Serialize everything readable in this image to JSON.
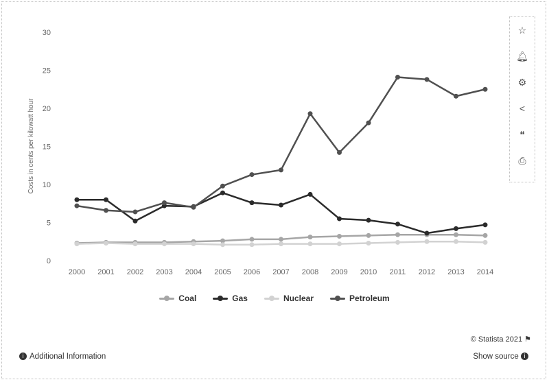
{
  "chart_data": {
    "type": "line",
    "ylabel": "Costs in cents per kilowatt hour",
    "xlabel": "",
    "ylim": [
      0,
      30
    ],
    "yticks": [
      0,
      5,
      10,
      15,
      20,
      25,
      30
    ],
    "grid": false,
    "legend_position": "bottom",
    "categories": [
      "2000",
      "2001",
      "2002",
      "2003",
      "2004",
      "2005",
      "2006",
      "2007",
      "2008",
      "2009",
      "2010",
      "2011",
      "2012",
      "2013",
      "2014"
    ],
    "series": [
      {
        "name": "Coal",
        "color": "#a6a6a6",
        "values": [
          2.3,
          2.4,
          2.4,
          2.4,
          2.5,
          2.6,
          2.8,
          2.8,
          3.1,
          3.2,
          3.3,
          3.4,
          3.4,
          3.4,
          3.3
        ]
      },
      {
        "name": "Gas",
        "color": "#2b2b2b",
        "values": [
          8.0,
          8.0,
          5.2,
          7.2,
          7.1,
          8.9,
          7.6,
          7.3,
          8.7,
          5.5,
          5.3,
          4.8,
          3.6,
          4.2,
          4.7
        ]
      },
      {
        "name": "Nuclear",
        "color": "#d2d2d2",
        "values": [
          2.2,
          2.3,
          2.2,
          2.2,
          2.2,
          2.1,
          2.1,
          2.2,
          2.2,
          2.2,
          2.3,
          2.4,
          2.5,
          2.5,
          2.4
        ]
      },
      {
        "name": "Petroleum",
        "color": "#505050",
        "values": [
          7.2,
          6.6,
          6.4,
          7.6,
          7.0,
          9.8,
          11.3,
          11.9,
          19.3,
          14.2,
          18.1,
          24.1,
          23.8,
          21.6,
          22.5
        ]
      }
    ]
  },
  "footer": {
    "credit": "© Statista 2021",
    "additional_info": "Additional Information",
    "show_source": "Show source"
  },
  "toolbar": {
    "icons": [
      "star-icon",
      "bell-icon",
      "gear-icon",
      "share-icon",
      "quote-icon",
      "print-icon"
    ]
  }
}
